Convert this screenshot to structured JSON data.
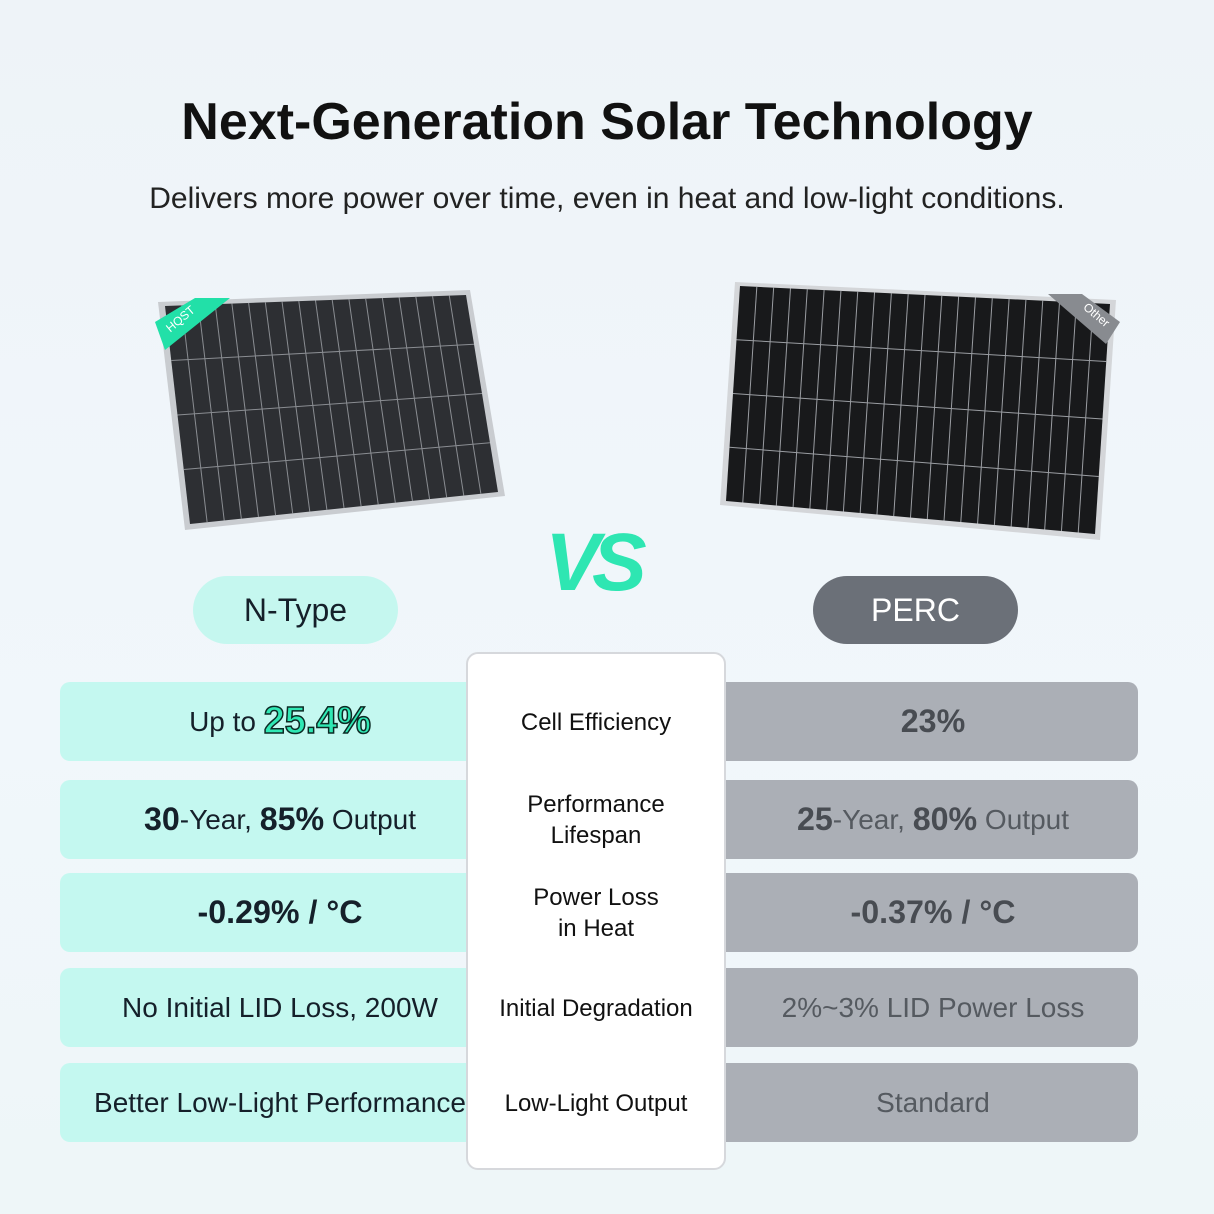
{
  "header": {
    "title": "Next-Generation Solar Technology",
    "subtitle": "Delivers more power over time, even in heat and low-light conditions."
  },
  "panels": {
    "left_badge": "HQST",
    "right_badge": "Other",
    "versus": "VS"
  },
  "left": {
    "label": "N-Type"
  },
  "right": {
    "label": "PERC"
  },
  "rows": [
    {
      "feature": [
        "Cell Efficiency"
      ],
      "left": [
        {
          "text": "Up to ",
          "bold": false
        },
        {
          "text": "25.4%",
          "bold": true,
          "highlight": true
        }
      ],
      "right": [
        {
          "text": "23%",
          "bold": true
        }
      ]
    },
    {
      "feature": [
        "Performance",
        "Lifespan"
      ],
      "left": [
        {
          "text": "30",
          "bold": true
        },
        {
          "text": "-Year, ",
          "bold": false
        },
        {
          "text": "85%",
          "bold": true
        },
        {
          "text": " Output",
          "bold": false
        }
      ],
      "right": [
        {
          "text": "25",
          "bold": true
        },
        {
          "text": "-Year, ",
          "bold": false
        },
        {
          "text": "80%",
          "bold": true
        },
        {
          "text": " Output",
          "bold": false
        }
      ]
    },
    {
      "feature": [
        "Power Loss",
        "in Heat"
      ],
      "left": [
        {
          "text": "-0.29% / °C",
          "bold": true
        }
      ],
      "right": [
        {
          "text": "-0.37% / °C",
          "bold": true
        }
      ]
    },
    {
      "feature": [
        "Initial Degradation"
      ],
      "left": [
        {
          "text": "No Initial LID Loss, 200W",
          "bold": false
        }
      ],
      "right": [
        {
          "text": "2%~3% LID Power Loss",
          "bold": false
        }
      ]
    },
    {
      "feature": [
        "Low-Light Output"
      ],
      "left": [
        {
          "text": "Better Low-Light Performance",
          "bold": false
        }
      ],
      "right": [
        {
          "text": "Standard",
          "bold": false
        }
      ]
    }
  ]
}
